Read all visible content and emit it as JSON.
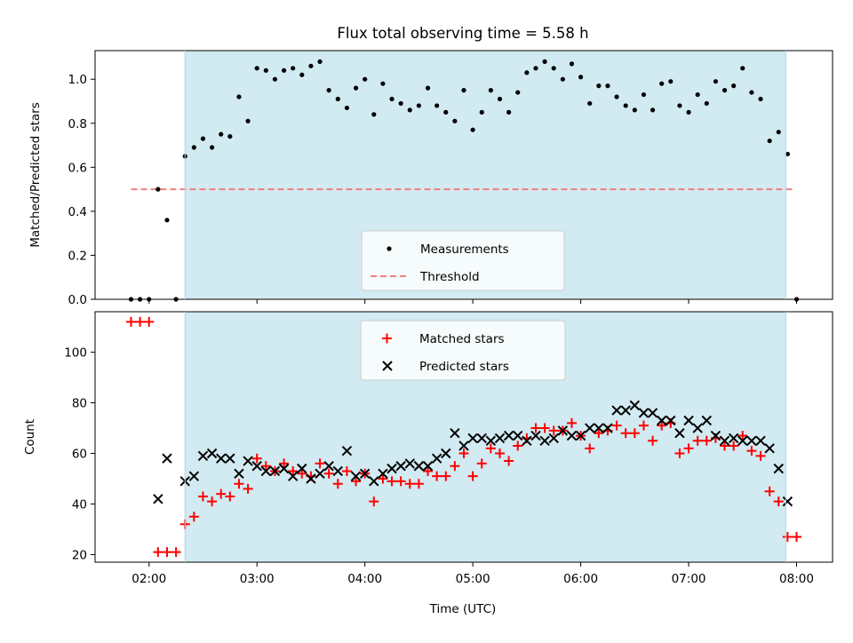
{
  "chart_data": [
    {
      "type": "scatter",
      "title": "Flux total observing time = 5.58 h",
      "xlabel": "",
      "ylabel": "Matched/Predicted stars",
      "ylim": [
        0,
        1.13
      ],
      "yticks": [
        0,
        0.2,
        0.4,
        0.6,
        0.8,
        1.0
      ],
      "ytick_labels": [
        "0.0",
        "0.2",
        "0.4",
        "0.6",
        "0.8",
        "1.0"
      ],
      "observing_window": [
        "02:20",
        "07:54"
      ],
      "observing_window_color": "#add8e6",
      "legend_position": "bottom-center",
      "series": [
        {
          "name": "Measurements",
          "kind": "points",
          "color": "#000000",
          "data": [
            [
              "01:50",
              0
            ],
            [
              "01:55",
              0
            ],
            [
              "02:00",
              0
            ],
            [
              "02:05",
              0.5
            ],
            [
              "02:10",
              0.36
            ],
            [
              "02:15",
              0
            ],
            [
              "02:20",
              0.65
            ],
            [
              "02:25",
              0.69
            ],
            [
              "02:30",
              0.73
            ],
            [
              "02:35",
              0.69
            ],
            [
              "02:40",
              0.75
            ],
            [
              "02:45",
              0.74
            ],
            [
              "02:50",
              0.92
            ],
            [
              "02:55",
              0.81
            ],
            [
              "03:00",
              1.05
            ],
            [
              "03:05",
              1.04
            ],
            [
              "03:10",
              1.0
            ],
            [
              "03:15",
              1.04
            ],
            [
              "03:20",
              1.05
            ],
            [
              "03:25",
              1.02
            ],
            [
              "03:30",
              1.06
            ],
            [
              "03:35",
              1.08
            ],
            [
              "03:40",
              0.95
            ],
            [
              "03:45",
              0.91
            ],
            [
              "03:50",
              0.87
            ],
            [
              "03:55",
              0.96
            ],
            [
              "04:00",
              1.0
            ],
            [
              "04:05",
              0.84
            ],
            [
              "04:10",
              0.98
            ],
            [
              "04:15",
              0.91
            ],
            [
              "04:20",
              0.89
            ],
            [
              "04:25",
              0.86
            ],
            [
              "04:30",
              0.88
            ],
            [
              "04:35",
              0.96
            ],
            [
              "04:40",
              0.88
            ],
            [
              "04:45",
              0.85
            ],
            [
              "04:50",
              0.81
            ],
            [
              "04:55",
              0.95
            ],
            [
              "05:00",
              0.77
            ],
            [
              "05:05",
              0.85
            ],
            [
              "05:10",
              0.95
            ],
            [
              "05:15",
              0.91
            ],
            [
              "05:20",
              0.85
            ],
            [
              "05:25",
              0.94
            ],
            [
              "05:30",
              1.03
            ],
            [
              "05:35",
              1.05
            ],
            [
              "05:40",
              1.08
            ],
            [
              "05:45",
              1.05
            ],
            [
              "05:50",
              1.0
            ],
            [
              "05:55",
              1.07
            ],
            [
              "06:00",
              1.01
            ],
            [
              "06:05",
              0.89
            ],
            [
              "06:10",
              0.97
            ],
            [
              "06:15",
              0.97
            ],
            [
              "06:20",
              0.92
            ],
            [
              "06:25",
              0.88
            ],
            [
              "06:30",
              0.86
            ],
            [
              "06:35",
              0.93
            ],
            [
              "06:40",
              0.86
            ],
            [
              "06:45",
              0.98
            ],
            [
              "06:50",
              0.99
            ],
            [
              "06:55",
              0.88
            ],
            [
              "07:00",
              0.85
            ],
            [
              "07:05",
              0.93
            ],
            [
              "07:10",
              0.89
            ],
            [
              "07:15",
              0.99
            ],
            [
              "07:20",
              0.95
            ],
            [
              "07:25",
              0.97
            ],
            [
              "07:30",
              1.05
            ],
            [
              "07:35",
              0.94
            ],
            [
              "07:40",
              0.91
            ],
            [
              "07:45",
              0.72
            ],
            [
              "07:50",
              0.76
            ],
            [
              "07:55",
              0.66
            ],
            [
              "08:00",
              0
            ]
          ]
        },
        {
          "name": "Threshold",
          "kind": "dashed-line",
          "color": "#f08080",
          "data": [
            [
              "01:50",
              0.5
            ],
            [
              "07:59",
              0.5
            ]
          ]
        }
      ]
    },
    {
      "type": "scatter",
      "title": "",
      "xlabel": "Time (UTC)",
      "ylabel": "Count",
      "ylim": [
        17,
        116
      ],
      "yticks": [
        20,
        40,
        60,
        80,
        100
      ],
      "ytick_labels": [
        "20",
        "40",
        "60",
        "80",
        "100"
      ],
      "xlim": [
        "01:30",
        "08:20"
      ],
      "xticks": [
        "02:00",
        "03:00",
        "04:00",
        "05:00",
        "06:00",
        "07:00",
        "08:00"
      ],
      "xtick_labels": [
        "02:00",
        "03:00",
        "04:00",
        "05:00",
        "06:00",
        "07:00",
        "08:00"
      ],
      "observing_window": [
        "02:20",
        "07:54"
      ],
      "observing_window_color": "#add8e6",
      "legend_position": "top-center",
      "series": [
        {
          "name": "Matched stars",
          "kind": "plus",
          "color": "#ff0000",
          "data": [
            [
              "01:50",
              112
            ],
            [
              "01:55",
              112
            ],
            [
              "02:00",
              112
            ],
            [
              "02:05",
              21
            ],
            [
              "02:10",
              21
            ],
            [
              "02:15",
              21
            ],
            [
              "02:20",
              32
            ],
            [
              "02:25",
              35
            ],
            [
              "02:30",
              43
            ],
            [
              "02:35",
              41
            ],
            [
              "02:40",
              44
            ],
            [
              "02:45",
              43
            ],
            [
              "02:50",
              48
            ],
            [
              "02:55",
              46
            ],
            [
              "03:00",
              58
            ],
            [
              "03:05",
              55
            ],
            [
              "03:10",
              53
            ],
            [
              "03:15",
              56
            ],
            [
              "03:20",
              53
            ],
            [
              "03:25",
              52
            ],
            [
              "03:30",
              51
            ],
            [
              "03:35",
              56
            ],
            [
              "03:40",
              52
            ],
            [
              "03:45",
              48
            ],
            [
              "03:50",
              53
            ],
            [
              "03:55",
              49
            ],
            [
              "04:00",
              52
            ],
            [
              "04:05",
              41
            ],
            [
              "04:10",
              50
            ],
            [
              "04:15",
              49
            ],
            [
              "04:20",
              49
            ],
            [
              "04:25",
              48
            ],
            [
              "04:30",
              48
            ],
            [
              "04:35",
              53
            ],
            [
              "04:40",
              51
            ],
            [
              "04:45",
              51
            ],
            [
              "04:50",
              55
            ],
            [
              "04:55",
              60
            ],
            [
              "05:00",
              51
            ],
            [
              "05:05",
              56
            ],
            [
              "05:10",
              62
            ],
            [
              "05:15",
              60
            ],
            [
              "05:20",
              57
            ],
            [
              "05:25",
              63
            ],
            [
              "05:30",
              66
            ],
            [
              "05:35",
              70
            ],
            [
              "05:40",
              70
            ],
            [
              "05:45",
              69
            ],
            [
              "05:50",
              69
            ],
            [
              "05:55",
              72
            ],
            [
              "06:00",
              67
            ],
            [
              "06:05",
              62
            ],
            [
              "06:10",
              68
            ],
            [
              "06:15",
              69
            ],
            [
              "06:20",
              71
            ],
            [
              "06:25",
              68
            ],
            [
              "06:30",
              68
            ],
            [
              "06:35",
              71
            ],
            [
              "06:40",
              65
            ],
            [
              "06:45",
              71
            ],
            [
              "06:50",
              72
            ],
            [
              "06:55",
              60
            ],
            [
              "07:00",
              62
            ],
            [
              "07:05",
              65
            ],
            [
              "07:10",
              65
            ],
            [
              "07:15",
              66
            ],
            [
              "07:20",
              63
            ],
            [
              "07:25",
              63
            ],
            [
              "07:30",
              67
            ],
            [
              "07:35",
              61
            ],
            [
              "07:40",
              59
            ],
            [
              "07:45",
              45
            ],
            [
              "07:50",
              41
            ],
            [
              "07:55",
              27
            ],
            [
              "08:00",
              27
            ]
          ]
        },
        {
          "name": "Predicted stars",
          "kind": "cross",
          "color": "#000000",
          "data": [
            [
              "02:05",
              42
            ],
            [
              "02:10",
              58
            ],
            [
              "02:20",
              49
            ],
            [
              "02:25",
              51
            ],
            [
              "02:30",
              59
            ],
            [
              "02:35",
              60
            ],
            [
              "02:40",
              58
            ],
            [
              "02:45",
              58
            ],
            [
              "02:50",
              52
            ],
            [
              "02:55",
              57
            ],
            [
              "03:00",
              55
            ],
            [
              "03:05",
              53
            ],
            [
              "03:10",
              53
            ],
            [
              "03:15",
              54
            ],
            [
              "03:20",
              51
            ],
            [
              "03:25",
              54
            ],
            [
              "03:30",
              50
            ],
            [
              "03:35",
              52
            ],
            [
              "03:40",
              55
            ],
            [
              "03:45",
              53
            ],
            [
              "03:50",
              61
            ],
            [
              "03:55",
              51
            ],
            [
              "04:00",
              52
            ],
            [
              "04:05",
              49
            ],
            [
              "04:10",
              52
            ],
            [
              "04:15",
              54
            ],
            [
              "04:20",
              55
            ],
            [
              "04:25",
              56
            ],
            [
              "04:30",
              55
            ],
            [
              "04:35",
              55
            ],
            [
              "04:40",
              58
            ],
            [
              "04:45",
              60
            ],
            [
              "04:50",
              68
            ],
            [
              "04:55",
              63
            ],
            [
              "05:00",
              66
            ],
            [
              "05:05",
              66
            ],
            [
              "05:10",
              65
            ],
            [
              "05:15",
              66
            ],
            [
              "05:20",
              67
            ],
            [
              "05:25",
              67
            ],
            [
              "05:30",
              65
            ],
            [
              "05:35",
              67
            ],
            [
              "05:40",
              65
            ],
            [
              "05:45",
              66
            ],
            [
              "05:50",
              69
            ],
            [
              "05:55",
              67
            ],
            [
              "06:00",
              67
            ],
            [
              "06:05",
              70
            ],
            [
              "06:10",
              70
            ],
            [
              "06:15",
              70
            ],
            [
              "06:20",
              77
            ],
            [
              "06:25",
              77
            ],
            [
              "06:30",
              79
            ],
            [
              "06:35",
              76
            ],
            [
              "06:40",
              76
            ],
            [
              "06:45",
              73
            ],
            [
              "06:50",
              73
            ],
            [
              "06:55",
              68
            ],
            [
              "07:00",
              73
            ],
            [
              "07:05",
              70
            ],
            [
              "07:10",
              73
            ],
            [
              "07:15",
              67
            ],
            [
              "07:20",
              65
            ],
            [
              "07:25",
              66
            ],
            [
              "07:30",
              65
            ],
            [
              "07:35",
              65
            ],
            [
              "07:40",
              65
            ],
            [
              "07:45",
              62
            ],
            [
              "07:50",
              54
            ],
            [
              "07:55",
              41
            ]
          ]
        }
      ]
    }
  ]
}
